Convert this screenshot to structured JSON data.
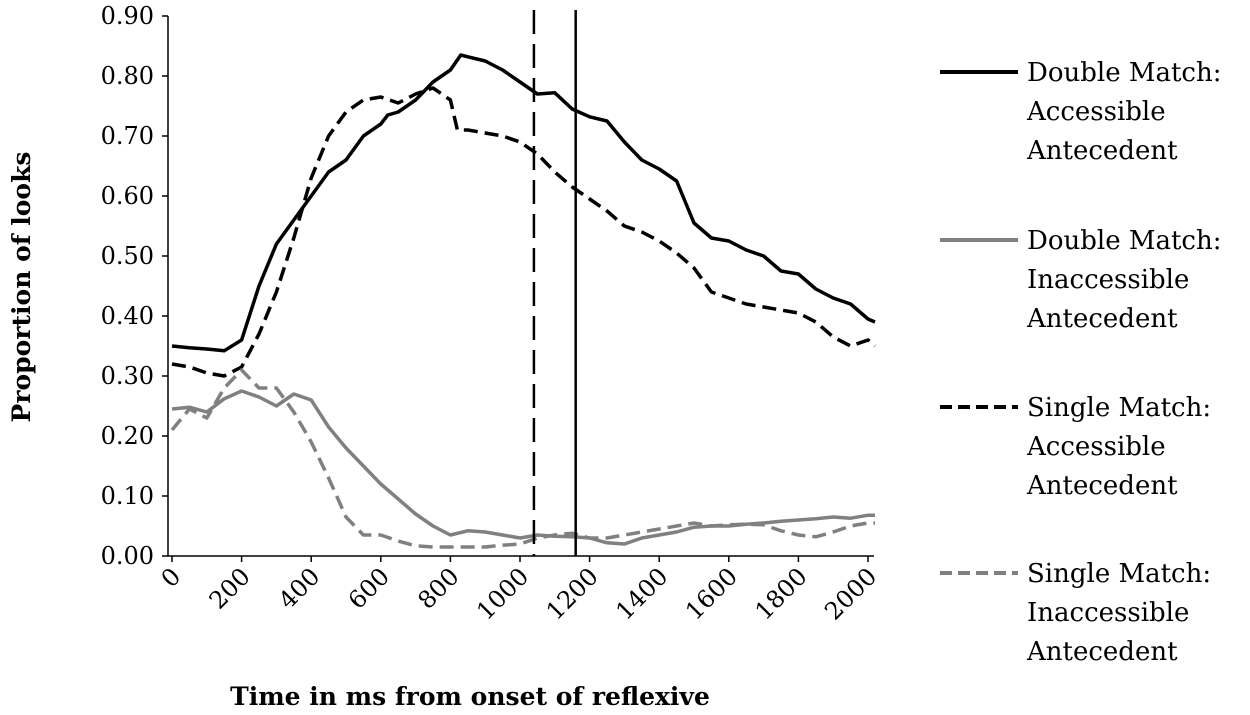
{
  "chart_data": {
    "type": "line",
    "title": "",
    "xlabel": "Time in ms from onset of reflexive",
    "ylabel": "Proportion of looks",
    "xlim": [
      0,
      2020
    ],
    "ylim": [
      0,
      0.9
    ],
    "x_ticks": [
      "0",
      "200",
      "400",
      "600",
      "800",
      "1000",
      "1200",
      "1400",
      "1600",
      "1800",
      "2000"
    ],
    "y_ticks": [
      "0.00",
      "0.10",
      "0.20",
      "0.30",
      "0.40",
      "0.50",
      "0.60",
      "0.70",
      "0.80",
      "0.90"
    ],
    "grid": false,
    "legend_position": "right",
    "vertical_lines": [
      {
        "x": 1040,
        "style": "dashed"
      },
      {
        "x": 1160,
        "style": "solid"
      }
    ],
    "series": [
      {
        "name_lines": [
          "Double Match:",
          "Accessible",
          "Antecedent"
        ],
        "color": "#000000",
        "dash": "solid",
        "x": [
          0,
          50,
          100,
          150,
          200,
          250,
          300,
          350,
          400,
          450,
          500,
          550,
          600,
          620,
          650,
          700,
          750,
          800,
          830,
          850,
          900,
          950,
          1000,
          1050,
          1100,
          1150,
          1200,
          1250,
          1300,
          1350,
          1400,
          1450,
          1500,
          1550,
          1600,
          1650,
          1700,
          1750,
          1800,
          1850,
          1900,
          1950,
          2000,
          2020
        ],
        "y": [
          0.35,
          0.347,
          0.345,
          0.342,
          0.36,
          0.45,
          0.52,
          0.56,
          0.6,
          0.64,
          0.66,
          0.7,
          0.72,
          0.735,
          0.74,
          0.76,
          0.79,
          0.81,
          0.835,
          0.832,
          0.825,
          0.81,
          0.79,
          0.77,
          0.772,
          0.745,
          0.732,
          0.725,
          0.69,
          0.66,
          0.645,
          0.625,
          0.555,
          0.53,
          0.525,
          0.51,
          0.5,
          0.475,
          0.47,
          0.445,
          0.43,
          0.42,
          0.395,
          0.39
        ],
        "values_note": ""
      },
      {
        "name_lines": [
          "Double Match:",
          "Inaccessible",
          "Antecedent"
        ],
        "color": "#808080",
        "dash": "solid",
        "x": [
          0,
          50,
          100,
          150,
          200,
          250,
          300,
          350,
          400,
          450,
          500,
          550,
          600,
          650,
          700,
          750,
          800,
          850,
          900,
          950,
          1000,
          1050,
          1100,
          1150,
          1200,
          1250,
          1300,
          1350,
          1400,
          1450,
          1500,
          1550,
          1600,
          1650,
          1700,
          1750,
          1800,
          1850,
          1900,
          1950,
          2000,
          2020
        ],
        "y": [
          0.245,
          0.248,
          0.24,
          0.262,
          0.275,
          0.265,
          0.25,
          0.27,
          0.26,
          0.215,
          0.18,
          0.15,
          0.12,
          0.095,
          0.07,
          0.05,
          0.035,
          0.042,
          0.04,
          0.035,
          0.03,
          0.035,
          0.033,
          0.032,
          0.03,
          0.022,
          0.02,
          0.03,
          0.035,
          0.04,
          0.048,
          0.05,
          0.05,
          0.053,
          0.055,
          0.058,
          0.06,
          0.062,
          0.065,
          0.063,
          0.068,
          0.068
        ],
        "values_note": ""
      },
      {
        "name_lines": [
          "Single Match:",
          "Accessible",
          "Antecedent"
        ],
        "color": "#000000",
        "dash": "dashed",
        "x": [
          0,
          50,
          100,
          150,
          200,
          250,
          300,
          350,
          400,
          450,
          500,
          550,
          600,
          650,
          700,
          750,
          800,
          820,
          850,
          900,
          950,
          1000,
          1050,
          1100,
          1150,
          1200,
          1250,
          1300,
          1350,
          1400,
          1450,
          1500,
          1550,
          1600,
          1650,
          1700,
          1750,
          1800,
          1850,
          1900,
          1950,
          2000,
          2020
        ],
        "y": [
          0.32,
          0.315,
          0.305,
          0.3,
          0.315,
          0.37,
          0.44,
          0.53,
          0.63,
          0.7,
          0.74,
          0.76,
          0.765,
          0.755,
          0.77,
          0.78,
          0.76,
          0.71,
          0.71,
          0.705,
          0.7,
          0.69,
          0.67,
          0.64,
          0.615,
          0.595,
          0.575,
          0.55,
          0.54,
          0.525,
          0.505,
          0.48,
          0.44,
          0.43,
          0.42,
          0.415,
          0.41,
          0.405,
          0.39,
          0.365,
          0.35,
          0.36,
          0.35
        ],
        "values_note": ""
      },
      {
        "name_lines": [
          "Single Match:",
          "Inaccessible",
          "Antecedent"
        ],
        "color": "#808080",
        "dash": "dashed",
        "x": [
          0,
          50,
          100,
          150,
          200,
          250,
          300,
          350,
          400,
          450,
          500,
          550,
          600,
          650,
          700,
          750,
          800,
          850,
          900,
          950,
          1000,
          1050,
          1100,
          1150,
          1200,
          1250,
          1300,
          1350,
          1400,
          1450,
          1500,
          1550,
          1600,
          1650,
          1700,
          1750,
          1800,
          1850,
          1900,
          1950,
          2000,
          2020
        ],
        "y": [
          0.21,
          0.245,
          0.23,
          0.28,
          0.31,
          0.28,
          0.28,
          0.24,
          0.19,
          0.13,
          0.065,
          0.035,
          0.035,
          0.025,
          0.017,
          0.015,
          0.015,
          0.015,
          0.015,
          0.018,
          0.02,
          0.03,
          0.035,
          0.038,
          0.03,
          0.03,
          0.035,
          0.04,
          0.045,
          0.05,
          0.055,
          0.05,
          0.052,
          0.053,
          0.052,
          0.042,
          0.035,
          0.032,
          0.04,
          0.05,
          0.055,
          0.055
        ],
        "values_note": ""
      }
    ]
  }
}
